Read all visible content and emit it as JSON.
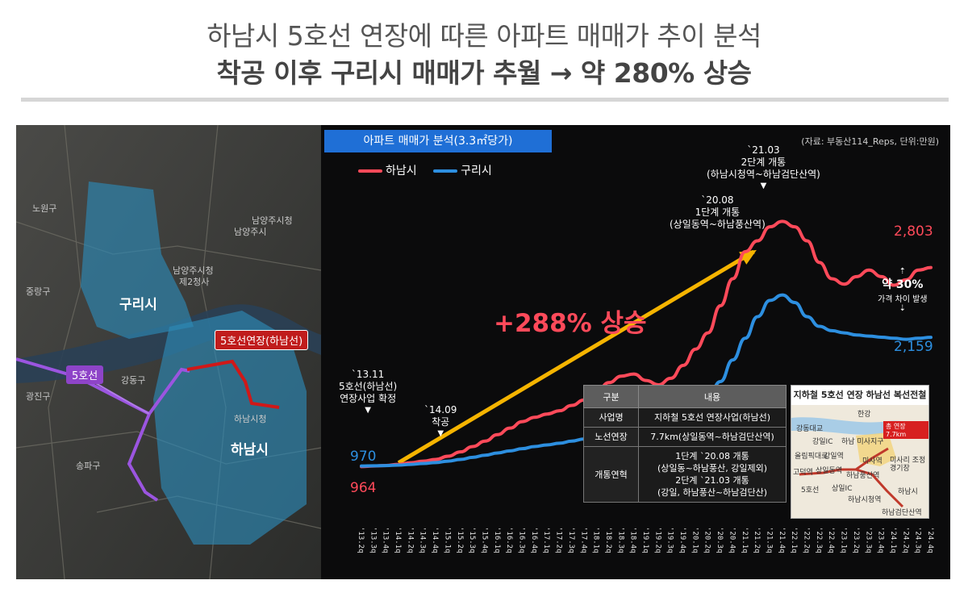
{
  "header": {
    "title_line1": "하남시 5호선 연장에 따른 아파트 매매가 추이 분석",
    "title_line2": "착공 이후 구리시 매매가 추월 → 약 280% 상승"
  },
  "map": {
    "tag_extension": "5호선연장(하남선)",
    "tag_line5": "5호선",
    "label_guri": "구리시",
    "label_hanam": "하남시",
    "small_labels": [
      "노원구",
      "남양주시청",
      "남양주시",
      "중랑구",
      "광진구",
      "강동구",
      "송파구",
      "남양주시청",
      "제2청사",
      "하남시청"
    ]
  },
  "chart_data": {
    "type": "line",
    "panel_title": "아파트 매매가 분석(3.3㎡당가)",
    "source": "(자료: 부동산114_Reps, 단위:만원)",
    "colors": {
      "hanam": "#ff4a5a",
      "guri": "#2d8fe0",
      "arrow": "#f5b400"
    },
    "categories": [
      "'13.2q",
      "'13.3q",
      "'13.4q",
      "'14.1q",
      "'14.2q",
      "'14.3q",
      "'14.4q",
      "'15.1q",
      "'15.2q",
      "'15.3q",
      "'15.4q",
      "'16.1q",
      "'16.2q",
      "'16.3q",
      "'16.4q",
      "'17.1q",
      "'17.2q",
      "'17.3q",
      "'17.4q",
      "'18.1q",
      "'18.2q",
      "'18.3q",
      "'18.4q",
      "'19.1q",
      "'19.2q",
      "'19.3q",
      "'19.4q",
      "'20.1q",
      "'20.2q",
      "'20.3q",
      "'20.4q",
      "'21.1q",
      "'21.2q",
      "'21.3q",
      "'21.4q",
      "'22.1q",
      "'22.2q",
      "'22.3q",
      "'22.4q",
      "'23.1q",
      "'23.2q",
      "'23.3q",
      "'23.4q",
      "'24.1q",
      "'24.2q",
      "'24.3q",
      "'24.4q"
    ],
    "series": [
      {
        "name": "하남시",
        "values": [
          964,
          970,
          975,
          985,
          1000,
          1015,
          1030,
          1060,
          1100,
          1150,
          1200,
          1260,
          1320,
          1380,
          1420,
          1450,
          1480,
          1530,
          1580,
          1660,
          1740,
          1800,
          1820,
          1760,
          1720,
          1780,
          1900,
          2050,
          2200,
          2450,
          2700,
          2950,
          3050,
          3180,
          3230,
          3180,
          3050,
          2850,
          2700,
          2650,
          2720,
          2780,
          2720,
          2640,
          2690,
          2780,
          2803
        ]
      },
      {
        "name": "구리시",
        "values": [
          970,
          972,
          974,
          978,
          985,
          993,
          1002,
          1015,
          1030,
          1050,
          1070,
          1090,
          1110,
          1130,
          1150,
          1165,
          1180,
          1200,
          1220,
          1240,
          1260,
          1280,
          1300,
          1320,
          1340,
          1360,
          1420,
          1500,
          1600,
          1750,
          1950,
          2150,
          2350,
          2500,
          2550,
          2480,
          2350,
          2260,
          2220,
          2200,
          2180,
          2170,
          2160,
          2150,
          2140,
          2150,
          2159
        ]
      }
    ],
    "legend": [
      "하남시",
      "구리시"
    ],
    "start_labels": {
      "guri": "970",
      "hanam": "964"
    },
    "end_labels": {
      "hanam": "2,803",
      "guri": "2,159"
    },
    "surge_label": "+288% 상승",
    "gap_label": "약 30%",
    "gap_sub": "가격 차이 발생",
    "annotations": [
      {
        "line1": "`13.11",
        "line2": "5호선(하남선)",
        "line3": "연장사업 확정"
      },
      {
        "line1": "`14.09",
        "line2": "착공"
      },
      {
        "line1": "`20.08",
        "line2": "1단계 개통",
        "line3": "(상일동역~하남풍산역)"
      },
      {
        "line1": "`21.03",
        "line2": "2단계 개통",
        "line3": "(하남시청역~하남검단산역)"
      }
    ]
  },
  "info_table": {
    "headers": [
      "구분",
      "내용"
    ],
    "rows": [
      {
        "k": "사업명",
        "v": "지하철 5호선 연장사업(하남선)"
      },
      {
        "k": "노선연장",
        "v": "7.7km(상일동역~하남검단산역)"
      },
      {
        "k": "개통연혁",
        "v1": "1단계 `20.08 개통",
        "v2": "(상일동~하남풍산, 강일제외)",
        "v3": "2단계 `21.03 개통",
        "v4": "(강일, 하남풍산~하남검단산)"
      }
    ]
  },
  "inset_map": {
    "title": "지하철 5호선 연장 하남선 복선전철",
    "tag": "총 연장 7.7km",
    "labels": [
      "한강",
      "강동대교",
      "강일IC",
      "하남 미사지구",
      "올림픽대로",
      "강일역",
      "미사역",
      "미사리 조정경기장",
      "고덕역",
      "상일동역",
      "하남풍산역",
      "5호선",
      "상일IC",
      "하남시청역",
      "하남시",
      "하남검단산역"
    ]
  }
}
